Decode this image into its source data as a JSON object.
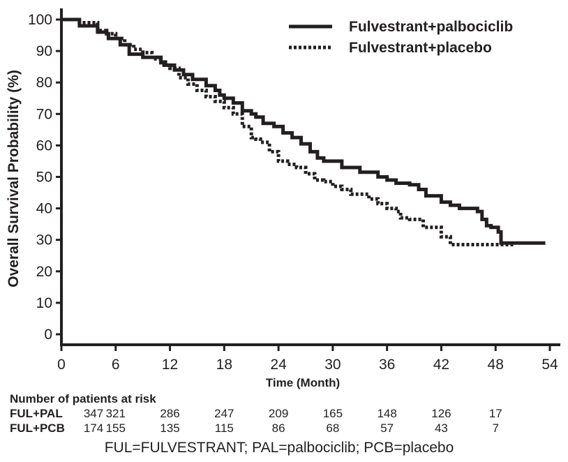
{
  "chart_data": {
    "type": "line",
    "xlabel": "Time (Month)",
    "ylabel": "Overall Survival Probability (%)",
    "xlim": [
      0,
      54
    ],
    "ylim": [
      0,
      100
    ],
    "x_ticks": [
      0,
      6,
      12,
      18,
      24,
      30,
      36,
      42,
      48,
      54
    ],
    "y_ticks": [
      0,
      10,
      20,
      30,
      40,
      50,
      60,
      70,
      80,
      90,
      100
    ],
    "legend_position": "top-right",
    "series": [
      {
        "name": "Fulvestrant+palbociclib",
        "style": "solid",
        "color": "#231f20",
        "x": [
          0,
          2,
          4,
          5,
          5.2,
          6,
          6.5,
          7.5,
          9,
          11,
          11.5,
          12.5,
          13.5,
          14.5,
          15,
          16,
          17,
          17.5,
          18,
          19,
          20,
          21,
          21.5,
          22.3,
          23.5,
          24.5,
          25.5,
          26.5,
          27.5,
          28.3,
          29,
          31,
          33,
          35,
          36,
          37,
          38.5,
          39.5,
          40.3,
          41,
          41.5,
          42,
          43,
          44,
          45.5,
          46,
          46.5,
          47,
          47.5,
          48,
          48.3,
          48.6,
          53.5
        ],
        "y": [
          100,
          98,
          96,
          95.5,
          94,
          94,
          92,
          89,
          88,
          86.5,
          85.5,
          84,
          82.5,
          81,
          81,
          79,
          77.5,
          76,
          75,
          73.5,
          71,
          70,
          69,
          67,
          66,
          64,
          62.5,
          60.5,
          58,
          56,
          55,
          53,
          51.5,
          50,
          49,
          48,
          47.5,
          46,
          44,
          44,
          44,
          42,
          41,
          40,
          40,
          39,
          36.5,
          34.5,
          34,
          34,
          32.5,
          29,
          29
        ]
      },
      {
        "name": "Fulvestrant+placebo",
        "style": "dotted",
        "color": "#231f20",
        "x": [
          0,
          2,
          4,
          5,
          6,
          7,
          8,
          9,
          10,
          11,
          12,
          13,
          14,
          15,
          16,
          17,
          18,
          19,
          20,
          21,
          21.5,
          22,
          23,
          24,
          25,
          26,
          27,
          28,
          29,
          30,
          31,
          32,
          34,
          35,
          36,
          37,
          37.5,
          38.5,
          39,
          40,
          41,
          42,
          43,
          44,
          45,
          50
        ],
        "y": [
          100,
          99,
          96.5,
          95.5,
          94,
          92,
          90.5,
          89.5,
          87.5,
          85.5,
          84.5,
          81.5,
          79.5,
          77.5,
          75.5,
          74,
          72,
          70,
          66,
          62.5,
          62,
          61,
          58,
          55,
          54,
          53,
          51,
          49,
          48.5,
          47,
          46,
          44.5,
          43,
          41.5,
          40,
          39,
          37,
          36.5,
          36.5,
          34,
          34,
          31,
          28.5,
          28.5,
          28.5,
          28.5
        ]
      }
    ]
  },
  "risk_table": {
    "title": "Number of patients at risk",
    "times": [
      0,
      6,
      12,
      18,
      24,
      30,
      36,
      42,
      48
    ],
    "rows": [
      {
        "label": "FUL+PAL",
        "values": [
          "347",
          "321",
          "286",
          "247",
          "209",
          "165",
          "148",
          "126",
          "17"
        ]
      },
      {
        "label": "FUL+PCB",
        "values": [
          "174",
          "155",
          "135",
          "115",
          "86",
          "68",
          "57",
          "43",
          "7"
        ]
      }
    ]
  },
  "footnote": "FUL=FULVESTRANT; PAL=palbociclib; PCB=placebo"
}
